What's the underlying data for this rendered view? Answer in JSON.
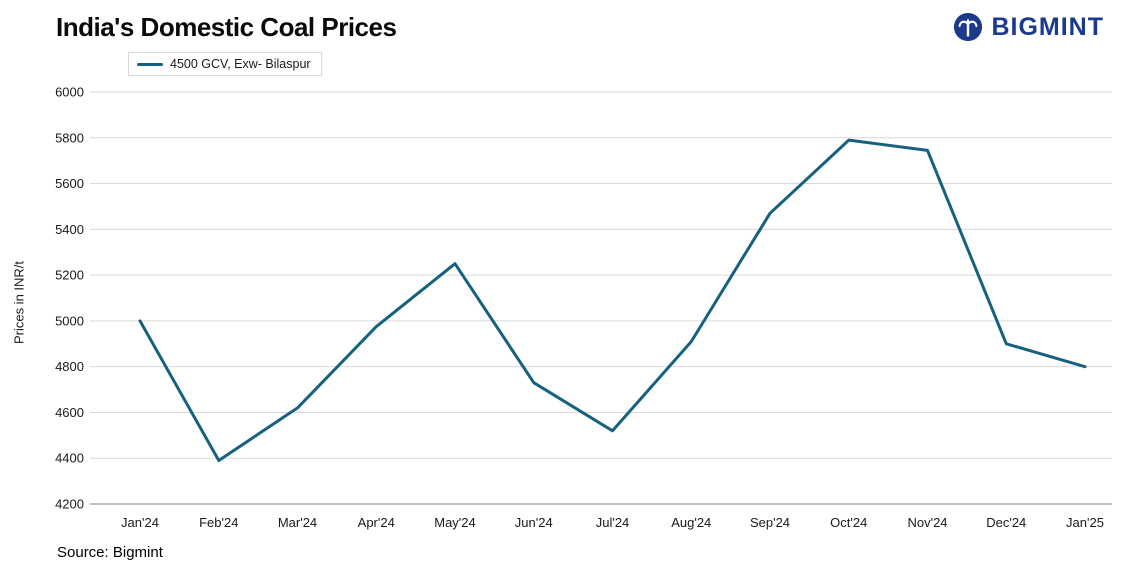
{
  "title": "India's Domestic Coal Prices",
  "source": "Source: Bigmint",
  "brand": {
    "name": "BIGMINT",
    "color": "#1b3a8c"
  },
  "chart_data": {
    "type": "line",
    "categories": [
      "Jan'24",
      "Feb'24",
      "Mar'24",
      "Apr'24",
      "May'24",
      "Jun'24",
      "Jul'24",
      "Aug'24",
      "Sep'24",
      "Oct'24",
      "Nov'24",
      "Dec'24",
      "Jan'25"
    ],
    "series": [
      {
        "name": "4500 GCV, Exw- Bilaspur",
        "values": [
          5000,
          4390,
          4620,
          4975,
          5250,
          4730,
          4520,
          4910,
          5470,
          5790,
          5745,
          4900,
          4800
        ]
      }
    ],
    "title": "India's Domestic Coal Prices",
    "xlabel": "",
    "ylabel": "Prices in INR/t",
    "ylim": [
      4200,
      6000
    ],
    "ytick_step": 200,
    "grid": true,
    "legend_position": "top-left",
    "line_color": "#16627e",
    "grid_color": "#d9d9d9",
    "axis_color": "#7f7f7f"
  }
}
